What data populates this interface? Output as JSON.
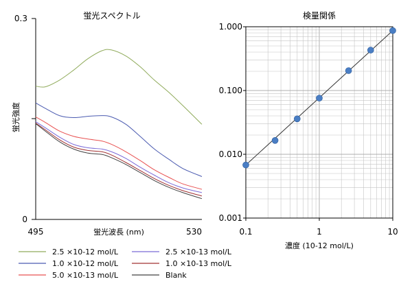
{
  "chart_data": [
    {
      "type": "line",
      "title": "蛍光スペクトル",
      "xlabel": "蛍光波長 (nm)",
      "ylabel": "蛍光強度",
      "x_tick_labels": [
        "495",
        "530"
      ],
      "y_tick_labels": [
        "0.3",
        "0"
      ],
      "xlim": [
        495,
        530
      ],
      "ylim": [
        0,
        0.3
      ],
      "x": [
        495,
        497,
        500,
        503,
        506,
        509,
        511,
        514,
        517,
        520,
        523,
        526,
        530
      ],
      "series": [
        {
          "name": "2.5 ×10-12 mol/L",
          "color": "#8faa5a",
          "values": [
            0.199,
            0.198,
            0.208,
            0.223,
            0.24,
            0.252,
            0.253,
            0.244,
            0.228,
            0.208,
            0.19,
            0.17,
            0.142
          ]
        },
        {
          "name": "1.0 ×10-12 mol/L",
          "color": "#4a5ab0",
          "values": [
            0.174,
            0.166,
            0.155,
            0.152,
            0.154,
            0.155,
            0.153,
            0.142,
            0.124,
            0.105,
            0.09,
            0.076,
            0.064
          ]
        },
        {
          "name": "5.0 ×10-13 mol/L",
          "color": "#e85050",
          "values": [
            0.153,
            0.145,
            0.132,
            0.124,
            0.12,
            0.117,
            0.112,
            0.101,
            0.088,
            0.074,
            0.063,
            0.053,
            0.045
          ]
        },
        {
          "name": "2.5 ×10-13 mol/L",
          "color": "#7a6ad8",
          "values": [
            0.146,
            0.137,
            0.123,
            0.112,
            0.107,
            0.105,
            0.101,
            0.091,
            0.078,
            0.066,
            0.055,
            0.047,
            0.04
          ]
        },
        {
          "name": "1.0 ×10-13 mol/L",
          "color": "#a03030",
          "values": [
            0.144,
            0.134,
            0.119,
            0.108,
            0.103,
            0.101,
            0.096,
            0.085,
            0.073,
            0.061,
            0.051,
            0.043,
            0.035
          ]
        },
        {
          "name": "Blank",
          "color": "#404040",
          "values": [
            0.143,
            0.132,
            0.116,
            0.105,
            0.099,
            0.097,
            0.092,
            0.082,
            0.07,
            0.058,
            0.048,
            0.04,
            0.031
          ]
        }
      ]
    },
    {
      "type": "scatter",
      "title": "検量関係",
      "xlabel": "濃度 (10-12 mol/L)",
      "xscale": "log",
      "yscale": "log",
      "xlim": [
        0.1,
        10
      ],
      "ylim": [
        0.001,
        1
      ],
      "x_tick_labels": [
        "0.1",
        "1",
        "10"
      ],
      "y_tick_labels": [
        "1.000",
        "0.100",
        "0.010",
        "0.001"
      ],
      "x": [
        0.1,
        0.25,
        0.5,
        1.0,
        2.5,
        5.0,
        10.0
      ],
      "values": [
        0.0068,
        0.0165,
        0.036,
        0.076,
        0.205,
        0.43,
        0.87
      ],
      "fit_line": {
        "x": [
          0.1,
          10
        ],
        "values": [
          0.0068,
          0.87
        ]
      },
      "marker_color": "#4a7ec4",
      "grid": true
    }
  ],
  "legend": {
    "items": [
      {
        "label": "2.5 ×10-12 mol/L",
        "color": "#8faa5a"
      },
      {
        "label": "2.5 ×10-13 mol/L",
        "color": "#7a6ad8"
      },
      {
        "label": "1.0 ×10-12 mol/L",
        "color": "#4a5ab0"
      },
      {
        "label": "1.0 ×10-13 mol/L",
        "color": "#a03030"
      },
      {
        "label": "5.0 ×10-13 mol/L",
        "color": "#e85050"
      },
      {
        "label": "Blank",
        "color": "#404040"
      }
    ]
  }
}
